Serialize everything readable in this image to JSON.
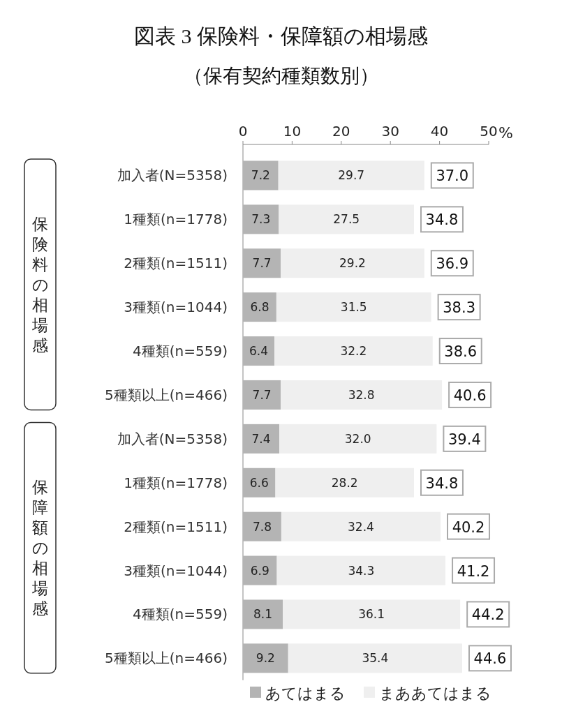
{
  "chart_data": {
    "type": "bar",
    "orientation": "horizontal",
    "stacked": true,
    "title": "図表 3 保険料・保障額の相場感",
    "subtitle": "（保有契約種類数別）",
    "xlabel": "%",
    "categories": [
      "加入者(N=5358)",
      "1種類(n=1778)",
      "2種類(n=1511)",
      "3種類(n=1044)",
      "4種類(n=559)",
      "5種類以上(n=466)",
      "加入者(N=5358)",
      "1種類(n=1778)",
      "2種類(n=1511)",
      "3種類(n=1044)",
      "4種類(n=559)",
      "5種類以上(n=466)"
    ],
    "series": [
      {
        "name": "あてはまる",
        "color": "#b4b4b4",
        "values": [
          7.2,
          7.3,
          7.7,
          6.8,
          6.4,
          7.7,
          7.4,
          6.6,
          7.8,
          6.9,
          8.1,
          9.2
        ]
      },
      {
        "name": "まああてはまる",
        "color": "#efefef",
        "values": [
          29.7,
          27.5,
          29.2,
          31.5,
          32.2,
          32.8,
          32.0,
          28.2,
          32.4,
          34.3,
          36.1,
          35.4
        ],
        "value_labels": [
          "29.7",
          "27.5",
          "29.2",
          "31.5",
          "32.2",
          "32.8",
          "32.0",
          "28.2",
          "32.4",
          "34.3",
          "36.1",
          "35.4"
        ]
      }
    ],
    "totals": [
      "37.0",
      "34.8",
      "36.9",
      "38.3",
      "38.6",
      "40.6",
      "39.4",
      "34.8",
      "40.2",
      "41.2",
      "44.2",
      "44.6"
    ],
    "data_labels": true,
    "xlim": [
      0,
      50
    ],
    "xticks": [
      0,
      10,
      20,
      30,
      40,
      50
    ],
    "annotations": [
      "保険料の相場感",
      "保障額の相場感"
    ],
    "legend": "bottom"
  }
}
